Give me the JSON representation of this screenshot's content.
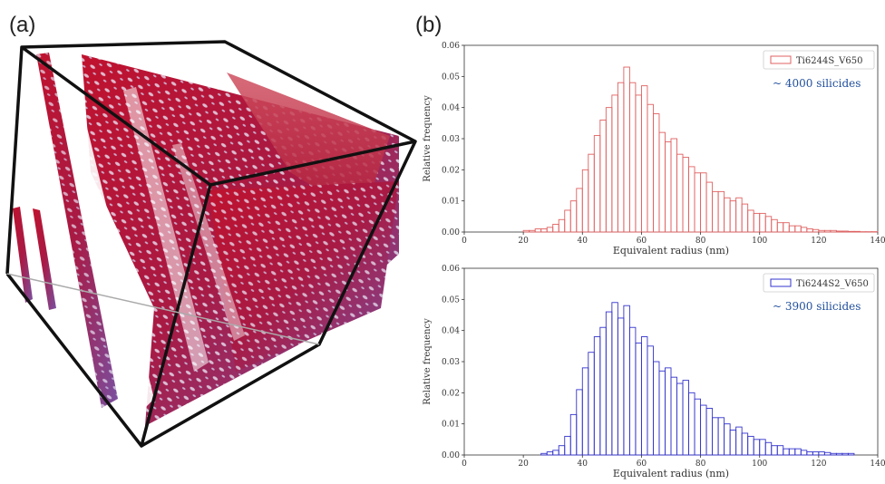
{
  "panels": {
    "a_label": "(a)",
    "b_label": "(b)"
  },
  "chart_data": [
    {
      "type": "bar",
      "xlabel": "Equivalent radius (nm)",
      "ylabel": "Relative frequency",
      "xlim": [
        0,
        140
      ],
      "ylim": [
        0,
        0.06
      ],
      "xticks": [
        "0",
        "20",
        "40",
        "60",
        "80",
        "100",
        "120",
        "140"
      ],
      "yticks": [
        "0.00",
        "0.01",
        "0.02",
        "0.03",
        "0.04",
        "0.05",
        "0.06"
      ],
      "legend": "top-right",
      "bin_width": 2,
      "color": "#e06060",
      "fill": "none",
      "series": [
        {
          "name": "Ti6244S_V650",
          "x": [
            20,
            22,
            24,
            26,
            28,
            30,
            32,
            34,
            36,
            38,
            40,
            42,
            44,
            46,
            48,
            50,
            52,
            54,
            56,
            58,
            60,
            62,
            64,
            66,
            68,
            70,
            72,
            74,
            76,
            78,
            80,
            82,
            84,
            86,
            88,
            90,
            92,
            94,
            96,
            98,
            100,
            102,
            104,
            106,
            108,
            110,
            112,
            114,
            116,
            118,
            120,
            122,
            124,
            126,
            128,
            130,
            132,
            134,
            136,
            138
          ],
          "values": [
            0.0005,
            0.0005,
            0.001,
            0.001,
            0.0015,
            0.0025,
            0.004,
            0.007,
            0.01,
            0.014,
            0.02,
            0.025,
            0.031,
            0.036,
            0.04,
            0.044,
            0.048,
            0.053,
            0.048,
            0.044,
            0.047,
            0.041,
            0.038,
            0.032,
            0.029,
            0.03,
            0.025,
            0.024,
            0.021,
            0.019,
            0.019,
            0.016,
            0.013,
            0.013,
            0.011,
            0.01,
            0.011,
            0.009,
            0.007,
            0.006,
            0.006,
            0.005,
            0.004,
            0.003,
            0.003,
            0.002,
            0.002,
            0.0015,
            0.001,
            0.0008,
            0.0005,
            0.0005,
            0.0005,
            0.0003,
            0.0003,
            0.0002,
            0.0002,
            0.0001,
            0.0001,
            0.0001
          ]
        }
      ],
      "annotation": "~ 4000 silicides",
      "annotation_color": "#1f4e9c"
    },
    {
      "type": "bar",
      "xlabel": "Equivalent radius (nm)",
      "ylabel": "Relative frequency",
      "xlim": [
        0,
        140
      ],
      "ylim": [
        0,
        0.06
      ],
      "xticks": [
        "0",
        "20",
        "40",
        "60",
        "80",
        "100",
        "120",
        "140"
      ],
      "yticks": [
        "0.00",
        "0.01",
        "0.02",
        "0.03",
        "0.04",
        "0.05",
        "0.06"
      ],
      "legend": "top-right",
      "bin_width": 2,
      "color": "#3333cc",
      "fill": "none",
      "series": [
        {
          "name": "Ti6244S2_V650",
          "x": [
            26,
            28,
            30,
            32,
            34,
            36,
            38,
            40,
            42,
            44,
            46,
            48,
            50,
            52,
            54,
            56,
            58,
            60,
            62,
            64,
            66,
            68,
            70,
            72,
            74,
            76,
            78,
            80,
            82,
            84,
            86,
            88,
            90,
            92,
            94,
            96,
            98,
            100,
            102,
            104,
            106,
            108,
            110,
            112,
            114,
            116,
            118,
            120,
            122,
            124,
            126,
            128,
            130
          ],
          "values": [
            0.0005,
            0.001,
            0.0015,
            0.003,
            0.006,
            0.013,
            0.021,
            0.028,
            0.033,
            0.038,
            0.041,
            0.046,
            0.049,
            0.044,
            0.048,
            0.041,
            0.036,
            0.038,
            0.035,
            0.03,
            0.027,
            0.028,
            0.025,
            0.023,
            0.024,
            0.02,
            0.018,
            0.016,
            0.015,
            0.012,
            0.012,
            0.01,
            0.008,
            0.009,
            0.007,
            0.006,
            0.005,
            0.005,
            0.004,
            0.003,
            0.003,
            0.002,
            0.002,
            0.002,
            0.0015,
            0.001,
            0.001,
            0.001,
            0.0008,
            0.0005,
            0.0005,
            0.0005,
            0.0005
          ]
        }
      ],
      "annotation": "~ 3900 silicides",
      "annotation_color": "#1f4e9c"
    }
  ]
}
